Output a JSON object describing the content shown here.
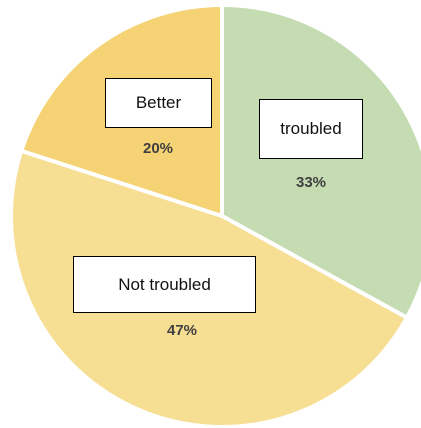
{
  "chart_data": {
    "type": "pie",
    "title": "",
    "slices": [
      {
        "label": "troubled",
        "value": 33,
        "value_label": "33%",
        "color": "#c5dcb2"
      },
      {
        "label": "Not troubled",
        "value": 47,
        "value_label": "47%",
        "color": "#f6de93"
      },
      {
        "label": "Better",
        "value": 20,
        "value_label": "20%",
        "color": "#f5d273"
      }
    ],
    "legend": "none",
    "start": "top",
    "direction": "clockwise"
  }
}
